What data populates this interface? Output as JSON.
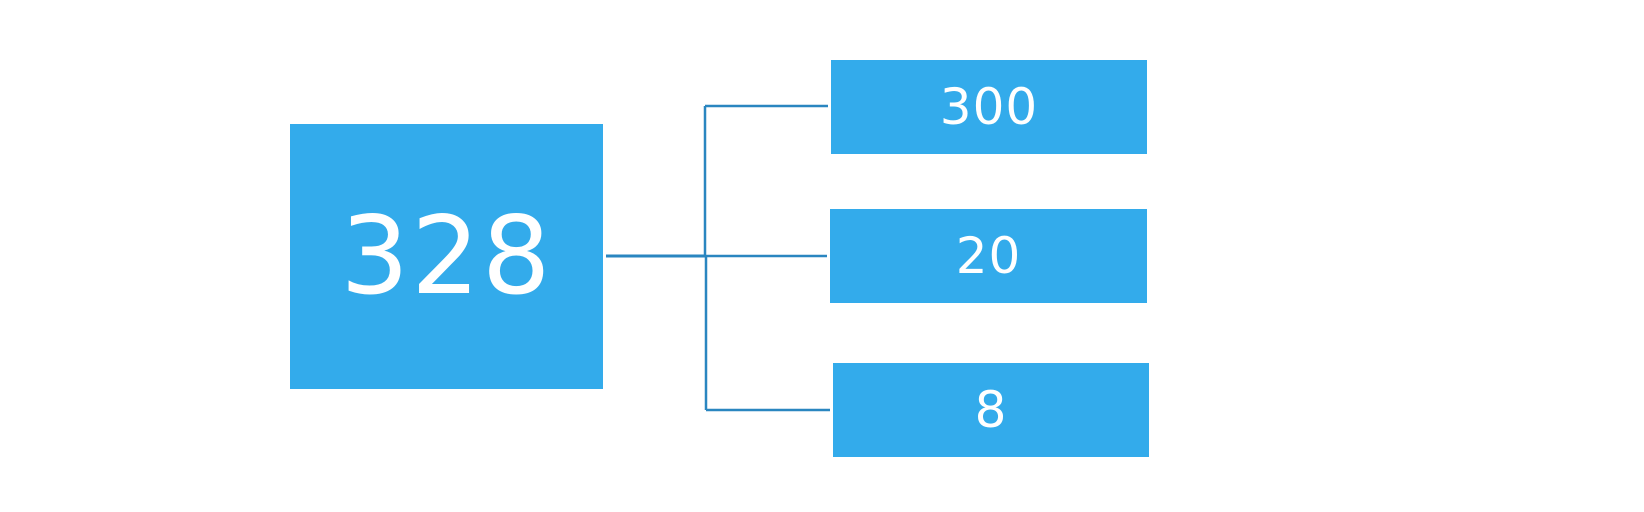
{
  "diagram": {
    "root": {
      "value": "328"
    },
    "children": [
      {
        "value": "300"
      },
      {
        "value": "20"
      },
      {
        "value": "8"
      }
    ],
    "colors": {
      "box_fill": "#33abeb",
      "box_text": "#ffffff",
      "connector": "#2a86c0",
      "background": "#ffffff"
    }
  }
}
